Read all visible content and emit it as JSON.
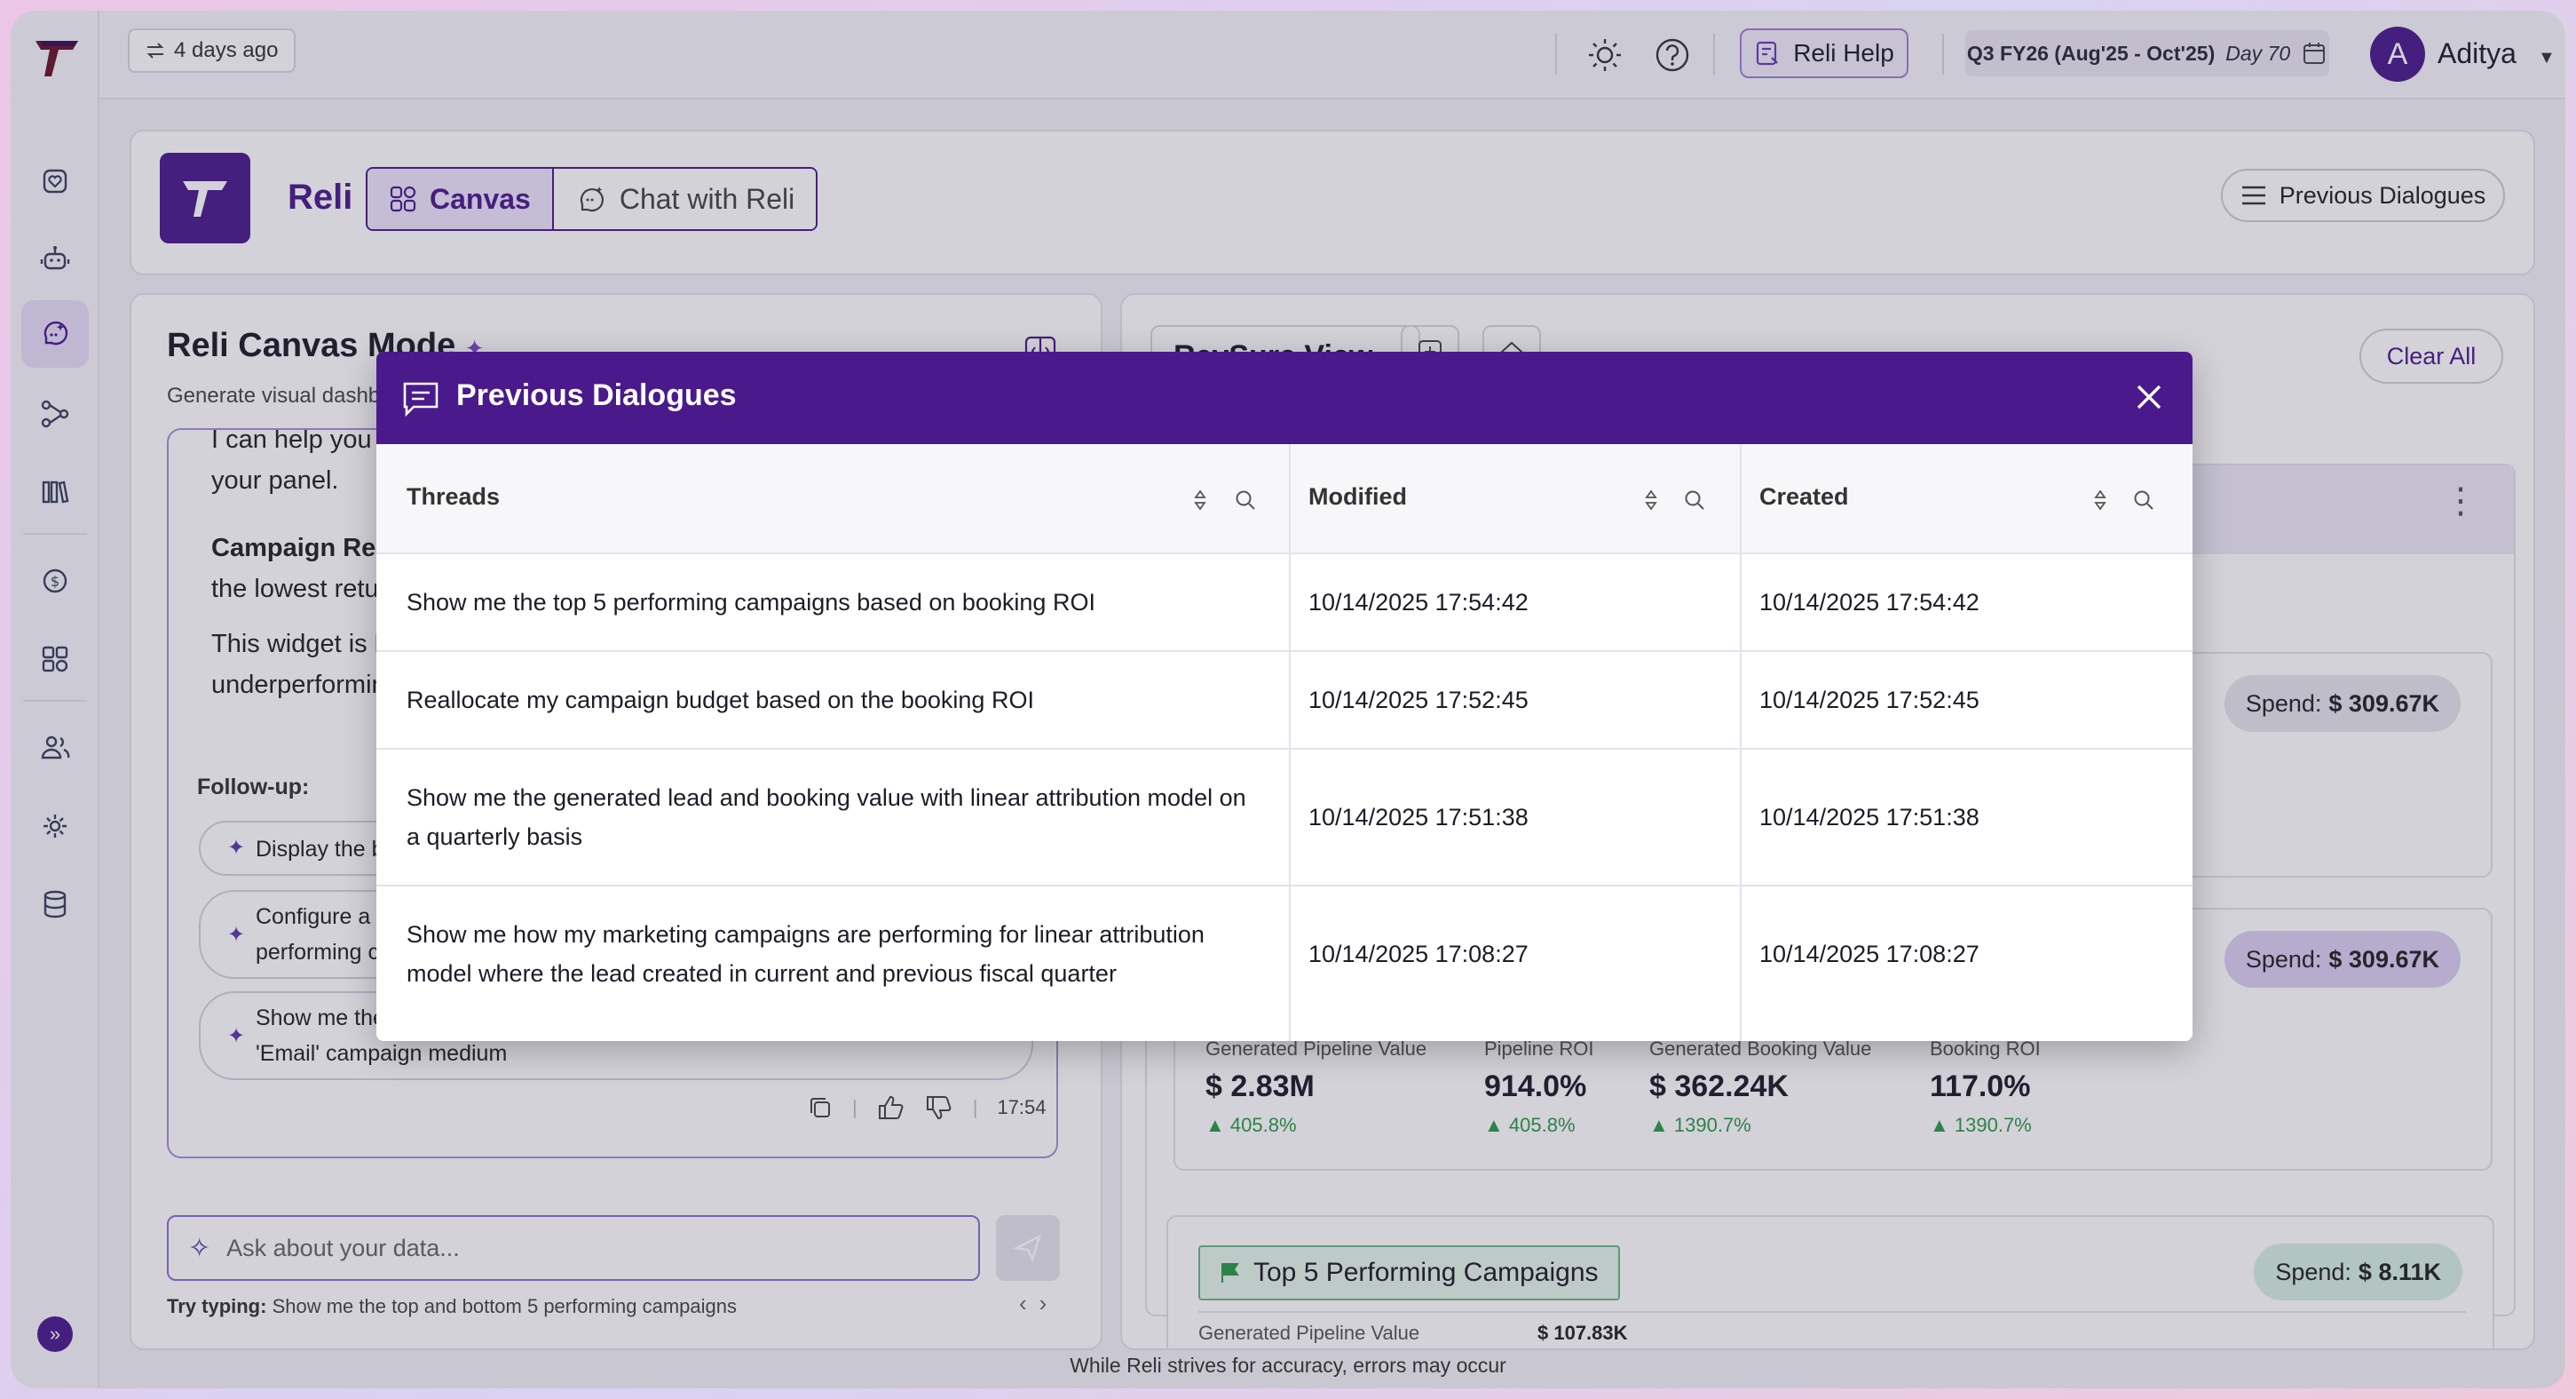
{
  "topbar": {
    "last_refresh": "4 days ago",
    "reli_help": "Reli Help",
    "fiscal_period": "Q3 FY26 (Aug'25 - Oct'25)",
    "fiscal_day": "Day 70",
    "avatar_initial": "A",
    "user_name": "Aditya"
  },
  "header": {
    "app_name": "Reli",
    "tab_canvas": "Canvas",
    "tab_chat": "Chat with Reli",
    "previous_dialogues": "Previous Dialogues"
  },
  "left_panel": {
    "title": "Reli Canvas Mode",
    "subtitle": "Generate visual dashbo",
    "chat_line1": "I can help you w",
    "chat_line2": "your panel.",
    "chat_bold": "Campaign Reall",
    "chat_line3": "the lowest retur",
    "chat_line4": "This widget is lo",
    "chat_line5": "underperformin",
    "followup_label": "Follow-up:",
    "followups": [
      {
        "line1": "Display the bo",
        "line2": ""
      },
      {
        "line1": "Configure a wi",
        "line2": "performing ca"
      },
      {
        "line1": "Show me the t",
        "line2": "'Email' campaign medium"
      }
    ],
    "message_time": "17:54",
    "ask_placeholder": "Ask about your data...",
    "try_typing_label": "Try typing:",
    "try_typing_text": "Show me the top and bottom 5 performing campaigns"
  },
  "right_panel": {
    "view_name": "RevSure View",
    "clear_all": "Clear All",
    "spend_label": "Spend:",
    "card1_spend": "$ 309.67K",
    "card2_spend": "$ 309.67K",
    "metrics": [
      {
        "label": "Generated Pipeline Value",
        "value": "$ 2.83M",
        "delta": "405.8%"
      },
      {
        "label": "Pipeline ROI",
        "value": "914.0%",
        "delta": "405.8%"
      },
      {
        "label": "Generated Booking Value",
        "value": "$ 362.24K",
        "delta": "1390.7%"
      },
      {
        "label": "Booking ROI",
        "value": "117.0%",
        "delta": "1390.7%"
      }
    ],
    "top5_title": "Top 5 Performing Campaigns",
    "top5_spend": "$ 8.11K",
    "partial_label": "Generated Pipeline Value",
    "partial_value": "$ 107.83K"
  },
  "modal": {
    "title": "Previous Dialogues",
    "columns": [
      "Threads",
      "Modified",
      "Created"
    ],
    "rows": [
      {
        "thread": "Show me the top 5 performing campaigns based on booking ROI",
        "thread2": "",
        "modified": "10/14/2025 17:54:42",
        "created": "10/14/2025 17:54:42"
      },
      {
        "thread": "Reallocate my campaign budget based on the booking ROI",
        "thread2": "",
        "modified": "10/14/2025 17:52:45",
        "created": "10/14/2025 17:52:45"
      },
      {
        "thread": "Show me the generated lead and booking value with linear attribution model on",
        "thread2": "a quarterly basis",
        "modified": "10/14/2025 17:51:38",
        "created": "10/14/2025 17:51:38"
      },
      {
        "thread": "Show me how my marketing campaigns are performing for linear attribution",
        "thread2": "model where the lead created in current and previous fiscal quarter",
        "modified": "10/14/2025 17:08:27",
        "created": "10/14/2025 17:08:27"
      }
    ]
  },
  "footer": {
    "disclaimer": "While Reli strives for accuracy, errors may occur"
  },
  "colors": {
    "brand": "#4a1a8c",
    "positive": "#2a9a4a"
  }
}
